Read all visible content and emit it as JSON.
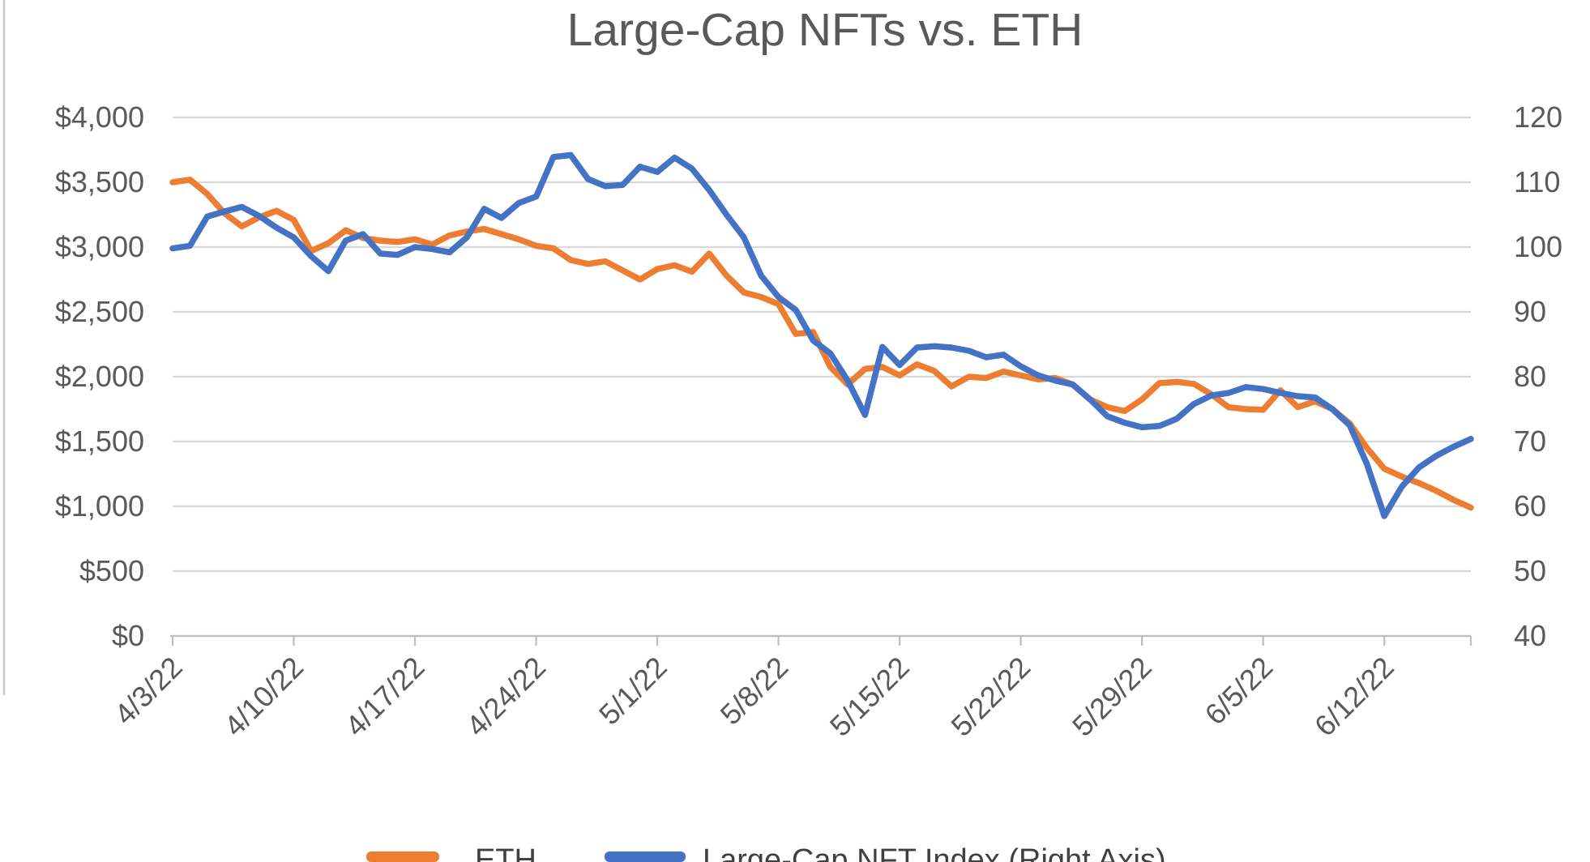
{
  "title": "Large-Cap NFTs vs. ETH",
  "colors": {
    "eth_orange": "#ED7D31",
    "nft_blue": "#4472C4",
    "gridline": "#D8D8D8",
    "axis_line": "#BFBFBF",
    "axis_text": "#595959",
    "title_text": "#595959"
  },
  "left_axis": {
    "tick_labels": [
      "$4,000",
      "$3,500",
      "$3,000",
      "$2,500",
      "$2,000",
      "$1,500",
      "$1,000",
      "$500",
      "$0"
    ]
  },
  "right_axis": {
    "tick_labels": [
      "120",
      "110",
      "100",
      "90",
      "80",
      "70",
      "60",
      "50",
      "40"
    ]
  },
  "x_axis": {
    "tick_labels": [
      "4/3/22",
      "4/10/22",
      "4/17/22",
      "4/24/22",
      "5/1/22",
      "5/8/22",
      "5/15/22",
      "5/22/22",
      "5/29/22",
      "6/5/22",
      "6/12/22"
    ]
  },
  "legend": {
    "items": [
      {
        "label": "ETH",
        "color": "#ED7D31"
      },
      {
        "label": "Large-Cap NFT Index (Right Axis)",
        "color": "#4472C4"
      }
    ]
  },
  "chart_data": {
    "type": "line",
    "title": "Large-Cap NFTs vs. ETH",
    "grid": true,
    "legend_position": "bottom",
    "left_ylim": [
      0,
      4000
    ],
    "right_ylim": [
      40,
      120
    ],
    "x_tick_step_days": 7,
    "x": [
      "4/3/22",
      "4/4/22",
      "4/5/22",
      "4/6/22",
      "4/7/22",
      "4/8/22",
      "4/9/22",
      "4/10/22",
      "4/11/22",
      "4/12/22",
      "4/13/22",
      "4/14/22",
      "4/15/22",
      "4/16/22",
      "4/17/22",
      "4/18/22",
      "4/19/22",
      "4/20/22",
      "4/21/22",
      "4/22/22",
      "4/23/22",
      "4/24/22",
      "4/25/22",
      "4/26/22",
      "4/27/22",
      "4/28/22",
      "4/29/22",
      "4/30/22",
      "5/1/22",
      "5/2/22",
      "5/3/22",
      "5/4/22",
      "5/5/22",
      "5/6/22",
      "5/7/22",
      "5/8/22",
      "5/9/22",
      "5/10/22",
      "5/11/22",
      "5/12/22",
      "5/13/22",
      "5/14/22",
      "5/15/22",
      "5/16/22",
      "5/17/22",
      "5/18/22",
      "5/19/22",
      "5/20/22",
      "5/21/22",
      "5/22/22",
      "5/23/22",
      "5/24/22",
      "5/25/22",
      "5/26/22",
      "5/27/22",
      "5/28/22",
      "5/29/22",
      "5/30/22",
      "5/31/22",
      "6/1/22",
      "6/2/22",
      "6/3/22",
      "6/4/22",
      "6/5/22",
      "6/6/22",
      "6/7/22",
      "6/8/22",
      "6/9/22",
      "6/10/22",
      "6/11/22",
      "6/12/22",
      "6/13/22",
      "6/14/22",
      "6/15/22",
      "6/16/22",
      "6/17/22"
    ],
    "series": [
      {
        "name": "ETH",
        "axis": "left",
        "color": "#ED7D31",
        "values": [
          3500,
          3520,
          3410,
          3260,
          3160,
          3230,
          3280,
          3210,
          2970,
          3030,
          3130,
          3070,
          3050,
          3040,
          3060,
          3020,
          3090,
          3120,
          3140,
          3100,
          3060,
          3010,
          2990,
          2900,
          2870,
          2890,
          2820,
          2750,
          2830,
          2860,
          2810,
          2950,
          2780,
          2650,
          2615,
          2560,
          2330,
          2345,
          2075,
          1940,
          2060,
          2075,
          2010,
          2095,
          2045,
          1925,
          2000,
          1990,
          2040,
          2010,
          1980,
          1990,
          1940,
          1825,
          1765,
          1735,
          1825,
          1950,
          1960,
          1945,
          1865,
          1765,
          1750,
          1745,
          1895,
          1765,
          1810,
          1750,
          1640,
          1450,
          1290,
          1230,
          1180,
          1120,
          1050,
          990
        ]
      },
      {
        "name": "Large-Cap NFT Index (Right Axis)",
        "axis": "right",
        "color": "#4472C4",
        "values": [
          99.8,
          100.2,
          104.7,
          105.5,
          106.2,
          104.8,
          103.0,
          101.5,
          98.6,
          96.3,
          101.0,
          102.0,
          99.0,
          98.8,
          100.0,
          99.7,
          99.2,
          101.5,
          105.9,
          104.5,
          106.8,
          107.8,
          113.9,
          114.2,
          110.5,
          109.4,
          109.6,
          112.4,
          111.6,
          113.8,
          112.1,
          108.8,
          105.0,
          101.5,
          95.6,
          92.3,
          90.3,
          85.6,
          83.6,
          79.4,
          74.1,
          84.6,
          81.8,
          84.5,
          84.7,
          84.5,
          84.0,
          83.0,
          83.4,
          81.6,
          80.2,
          79.4,
          78.8,
          76.5,
          73.9,
          72.9,
          72.2,
          72.4,
          73.5,
          75.8,
          77.1,
          77.5,
          78.4,
          78.1,
          77.5,
          77.0,
          76.8,
          75.0,
          72.5,
          66.5,
          58.5,
          63.0,
          66.0,
          67.8,
          69.2,
          70.4
        ]
      }
    ]
  }
}
